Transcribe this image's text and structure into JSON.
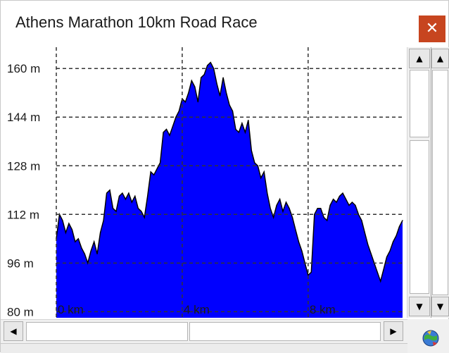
{
  "window": {
    "title": "Athens Marathon 10km Road Race",
    "close_glyph": "✕"
  },
  "scrollbars": {
    "up_glyph": "▲",
    "down_glyph": "▼",
    "left_glyph": "◀",
    "right_glyph": "▶"
  },
  "chart_data": {
    "type": "area",
    "title": "",
    "xlabel": "",
    "ylabel": "",
    "y_tick_labels": [
      "160 m",
      "144 m",
      "128 m",
      "112 m",
      "96 m",
      "80 m"
    ],
    "y_ticks": [
      160,
      144,
      128,
      112,
      96,
      80
    ],
    "x_tick_labels": [
      "0 km",
      "4 km",
      "8 km"
    ],
    "x_ticks": [
      0,
      4,
      8
    ],
    "xlim": [
      0,
      11
    ],
    "ylim": [
      78,
      167
    ],
    "grid": true,
    "colors": {
      "fill": "#0000ff",
      "line": "#000000",
      "grid": "#333333"
    },
    "series": [
      {
        "x": [
          0.0,
          0.1,
          0.2,
          0.3,
          0.4,
          0.5,
          0.6,
          0.7,
          0.8,
          0.9,
          1.0,
          1.1,
          1.2,
          1.3,
          1.4,
          1.5,
          1.6,
          1.7,
          1.8,
          1.9,
          2.0,
          2.1,
          2.2,
          2.3,
          2.4,
          2.5,
          2.6,
          2.7,
          2.8,
          2.9,
          3.0,
          3.1,
          3.2,
          3.3,
          3.4,
          3.5,
          3.6,
          3.7,
          3.8,
          3.9,
          4.0,
          4.1,
          4.2,
          4.3,
          4.4,
          4.5,
          4.6,
          4.7,
          4.8,
          4.9,
          5.0,
          5.1,
          5.2,
          5.3,
          5.4,
          5.5,
          5.6,
          5.7,
          5.8,
          5.9,
          6.0,
          6.1,
          6.2,
          6.3,
          6.4,
          6.5,
          6.6,
          6.7,
          6.8,
          6.9,
          7.0,
          7.1,
          7.2,
          7.3,
          7.4,
          7.5,
          7.6,
          7.7,
          7.8,
          7.9,
          8.0,
          8.1,
          8.2,
          8.3,
          8.4,
          8.5,
          8.6,
          8.7,
          8.8,
          8.9,
          9.0,
          9.1,
          9.2,
          9.3,
          9.4,
          9.5,
          9.6,
          9.7,
          9.8,
          9.9,
          10.0,
          10.1,
          10.2,
          10.3,
          10.4,
          10.5,
          10.6,
          10.7,
          10.8,
          10.9,
          11.0
        ],
        "y": [
          104,
          112,
          110,
          106,
          109,
          107,
          103,
          104,
          101,
          99,
          96,
          100,
          103,
          99,
          106,
          110,
          119,
          120,
          114,
          113,
          118,
          119,
          117,
          119,
          116,
          118,
          114,
          113,
          111,
          118,
          126,
          125,
          127,
          129,
          139,
          140,
          138,
          141,
          144,
          146,
          150,
          149,
          152,
          156,
          154,
          149,
          157,
          158,
          161,
          162,
          160,
          155,
          151,
          157,
          152,
          148,
          146,
          140,
          139,
          142,
          139,
          143,
          133,
          129,
          128,
          124,
          126,
          119,
          114,
          111,
          115,
          117,
          113,
          116,
          114,
          111,
          107,
          103,
          100,
          96,
          92,
          93,
          112,
          114,
          114,
          111,
          110,
          115,
          117,
          116,
          118,
          119,
          117,
          115,
          116,
          115,
          112,
          110,
          106,
          102,
          99,
          96,
          93,
          90,
          94,
          98,
          100,
          103,
          105,
          108,
          110
        ]
      }
    ]
  }
}
